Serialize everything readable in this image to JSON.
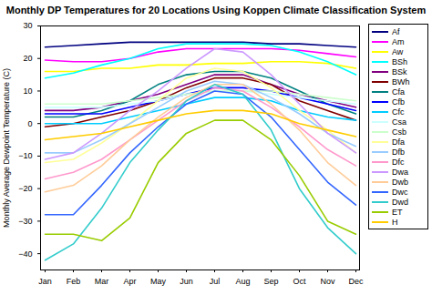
{
  "chart_data": {
    "type": "line",
    "title": "Monthly DP Temperatures for 20 Locations Using Koppen Climate Classification System",
    "y_label": "Monthly Average Dewpoint Temperature (C)",
    "categories": [
      "Jan",
      "Feb",
      "Mar",
      "Apr",
      "May",
      "Jun",
      "Jul",
      "Aug",
      "Sep",
      "Oct",
      "Nov",
      "Dec"
    ],
    "ylim": [
      -45,
      30
    ],
    "yticks": [
      -40,
      -30,
      -20,
      -10,
      0,
      10,
      20,
      30
    ],
    "grid": false,
    "legend": "right",
    "series": [
      {
        "name": "Af",
        "color": "#000080",
        "values": [
          23.5,
          24,
          24.5,
          25,
          25,
          25,
          25,
          25,
          24.5,
          24.5,
          24,
          23.5
        ]
      },
      {
        "name": "Am",
        "color": "#ff00ff",
        "values": [
          19.5,
          19,
          19,
          20,
          22,
          23,
          23,
          23,
          23,
          22.5,
          21.5,
          20.5
        ]
      },
      {
        "name": "Aw",
        "color": "#ffff00",
        "values": [
          16,
          16,
          17,
          17,
          18,
          18,
          18.5,
          18.5,
          19,
          19,
          18.5,
          17
        ]
      },
      {
        "name": "BSh",
        "color": "#00ffff",
        "values": [
          14,
          15.5,
          18,
          20,
          23,
          24.5,
          24.5,
          24.5,
          24,
          22,
          19,
          15
        ]
      },
      {
        "name": "BSk",
        "color": "#800080",
        "values": [
          4,
          4,
          5,
          7,
          9,
          12,
          15,
          15,
          12,
          9,
          7,
          5
        ]
      },
      {
        "name": "BWh",
        "color": "#800000",
        "values": [
          -1,
          0,
          2,
          4,
          7,
          11,
          14,
          14,
          12,
          7,
          4,
          1
        ]
      },
      {
        "name": "Cfa",
        "color": "#008080",
        "values": [
          2,
          2,
          4,
          7,
          12,
          15,
          16,
          16,
          14,
          10,
          6,
          3
        ]
      },
      {
        "name": "Cfb",
        "color": "#0000ff",
        "values": [
          3,
          3,
          3,
          5,
          7,
          9,
          11,
          11,
          10,
          8,
          6,
          4
        ]
      },
      {
        "name": "Cfc",
        "color": "#00ccff",
        "values": [
          0,
          0,
          0,
          2,
          4,
          6,
          8,
          8,
          7,
          4,
          2,
          1
        ]
      },
      {
        "name": "Csa",
        "color": "#ccffff",
        "values": [
          5,
          5,
          5,
          6,
          7,
          9,
          10,
          10,
          9,
          8,
          7,
          6
        ]
      },
      {
        "name": "Csb",
        "color": "#ccffcc",
        "values": [
          6,
          6,
          6,
          7,
          8,
          9,
          10,
          10,
          10,
          9,
          8,
          7
        ]
      },
      {
        "name": "Dfa",
        "color": "#ffff99",
        "values": [
          -12,
          -11,
          -6,
          0,
          7,
          14,
          17,
          16,
          11,
          4,
          -2,
          -9
        ]
      },
      {
        "name": "Dfb",
        "color": "#99ccff",
        "values": [
          -9,
          -9,
          -5,
          0,
          5,
          10,
          13,
          12,
          8,
          3,
          -3,
          -7
        ]
      },
      {
        "name": "Dfc",
        "color": "#ff99cc",
        "values": [
          -17,
          -15,
          -11,
          -5,
          1,
          7,
          11,
          10,
          5,
          -1,
          -8,
          -13
        ]
      },
      {
        "name": "Dwa",
        "color": "#cc99ff",
        "values": [
          -11,
          -9,
          -3,
          4,
          10,
          17,
          23,
          22,
          15,
          6,
          -3,
          -9
        ]
      },
      {
        "name": "Dwb",
        "color": "#ffcc99",
        "values": [
          -21,
          -19,
          -13,
          -5,
          2,
          8,
          12,
          12,
          6,
          -2,
          -12,
          -19
        ]
      },
      {
        "name": "Dwc",
        "color": "#3366ff",
        "values": [
          -28,
          -28,
          -19,
          -9,
          -1,
          6,
          10,
          9,
          2,
          -8,
          -18,
          -25
        ]
      },
      {
        "name": "Dwd",
        "color": "#33cccc",
        "values": [
          -42,
          -37,
          -26,
          -12,
          -2,
          7,
          12,
          9,
          -2,
          -20,
          -32,
          -40
        ]
      },
      {
        "name": "ET",
        "color": "#99cc00",
        "values": [
          -34,
          -34,
          -36,
          -29,
          -12,
          -3,
          1,
          1,
          -5,
          -16,
          -30,
          -34
        ]
      },
      {
        "name": "H",
        "color": "#ffcc00",
        "values": [
          -5,
          -4,
          -3,
          -1,
          1,
          3,
          4,
          4,
          3,
          0,
          -2,
          -4
        ]
      }
    ]
  }
}
